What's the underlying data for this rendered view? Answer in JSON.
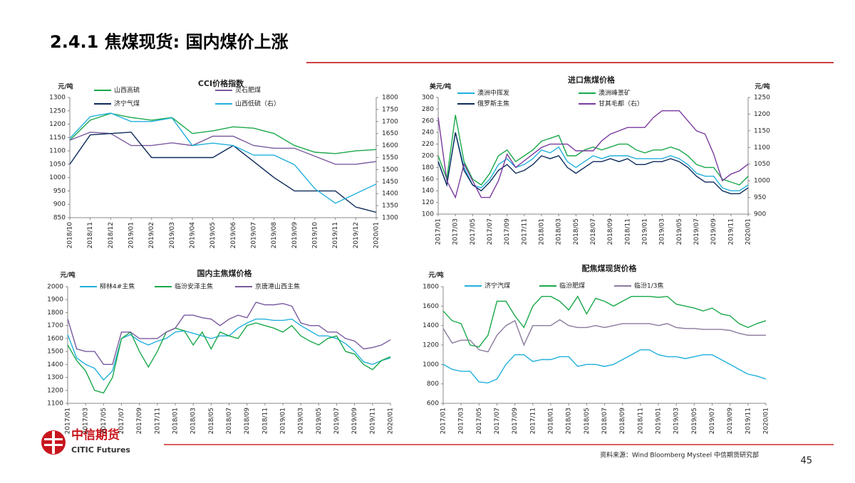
{
  "title": "2.4.1 焦煤现货: 国内煤价上涨",
  "logo": {
    "name": "中信期货",
    "english": "CITIC Futures"
  },
  "source": "资料来源：Wind Bloomberg Mysteel 中信期货研究部",
  "page_number": "45",
  "chart_data": [
    {
      "type": "line",
      "title": "CCI价格指数",
      "y_label": "元/吨",
      "categories": [
        "2018/10",
        "2018/11",
        "2018/12",
        "2019/01",
        "2019/02",
        "2019/03",
        "2019/04",
        "2019/05",
        "2019/06",
        "2019/07",
        "2019/08",
        "2019/09",
        "2019/10",
        "2019/11",
        "2019/12",
        "2020/01"
      ],
      "ylim": [
        850,
        1300
      ],
      "yticks": [
        850,
        900,
        950,
        1000,
        1050,
        1100,
        1150,
        1200,
        1250,
        1300
      ],
      "y2lim": [
        1300,
        1800
      ],
      "y2ticks": [
        1300,
        1350,
        1400,
        1450,
        1500,
        1550,
        1600,
        1650,
        1700,
        1750,
        1800
      ],
      "series": [
        {
          "name": "山西高硫",
          "color": "#1aa84a",
          "values": [
            1140,
            1215,
            1240,
            1225,
            1215,
            1225,
            1165,
            1175,
            1190,
            1185,
            1165,
            1120,
            1095,
            1090,
            1100,
            1105
          ]
        },
        {
          "name": "灵石肥煤",
          "color": "#7a5a9e",
          "values": [
            1140,
            1170,
            1165,
            1120,
            1120,
            1130,
            1120,
            1155,
            1155,
            1120,
            1110,
            1110,
            1080,
            1050,
            1050,
            1060
          ]
        },
        {
          "name": "济宁气煤",
          "color": "#0d2a5a",
          "values": [
            1050,
            1160,
            1165,
            1170,
            1075,
            1075,
            1075,
            1075,
            1120,
            1060,
            1000,
            950,
            950,
            950,
            890,
            870
          ]
        },
        {
          "name": "山西低硫（右）",
          "color": "#21b0dc",
          "axis": "y2",
          "values": [
            1630,
            1720,
            1735,
            1700,
            1700,
            1715,
            1600,
            1610,
            1600,
            1560,
            1560,
            1520,
            1420,
            1360,
            1400,
            1440
          ]
        }
      ]
    },
    {
      "type": "line",
      "title": "进口焦煤价格",
      "y_label": "美元/吨",
      "y2_label": "元/吨",
      "categories": [
        "2017/01",
        null,
        "2017/03",
        null,
        "2017/05",
        null,
        "2017/07",
        null,
        "2017/09",
        null,
        "2017/11",
        null,
        "2018/01",
        null,
        "2018/03",
        null,
        "2018/05",
        null,
        "2018/07",
        null,
        "2018/09",
        null,
        "2018/11",
        null,
        "2019/01",
        null,
        "2019/03",
        null,
        "2019/05",
        null,
        "2019/07",
        null,
        "2019/09",
        null,
        "2019/11",
        null,
        "2020/01"
      ],
      "ylim": [
        100,
        300
      ],
      "yticks": [
        100,
        120,
        140,
        160,
        180,
        200,
        220,
        240,
        260,
        280,
        300
      ],
      "y2lim": [
        900,
        1250
      ],
      "y2ticks": [
        900,
        950,
        1000,
        1050,
        1100,
        1150,
        1200,
        1250
      ],
      "series": [
        {
          "name": "澳洲中挥发",
          "color": "#21b0dc",
          "values": [
            190,
            150,
            240,
            180,
            150,
            145,
            160,
            185,
            195,
            180,
            185,
            195,
            210,
            205,
            215,
            190,
            180,
            190,
            200,
            195,
            200,
            200,
            200,
            195,
            195,
            195,
            195,
            200,
            195,
            185,
            170,
            165,
            165,
            145,
            140,
            140,
            150
          ]
        },
        {
          "name": "澳洲峰景矿",
          "color": "#1aa84a",
          "values": [
            200,
            160,
            270,
            190,
            160,
            150,
            170,
            200,
            210,
            190,
            200,
            210,
            225,
            230,
            235,
            200,
            200,
            210,
            215,
            210,
            215,
            220,
            220,
            210,
            205,
            210,
            210,
            215,
            210,
            200,
            185,
            180,
            180,
            160,
            155,
            150,
            165
          ]
        },
        {
          "name": "俄罗斯主焦",
          "color": "#0d2a5a",
          "values": [
            190,
            150,
            240,
            175,
            150,
            140,
            155,
            175,
            185,
            170,
            175,
            185,
            200,
            195,
            200,
            180,
            170,
            180,
            190,
            190,
            195,
            190,
            195,
            185,
            185,
            190,
            190,
            195,
            190,
            180,
            165,
            155,
            155,
            140,
            135,
            135,
            145
          ]
        },
        {
          "name": "甘其毛都（右）",
          "color": "#7a3a9e",
          "axis": "y2",
          "values": [
            1190,
            1000,
            950,
            1050,
            1000,
            950,
            950,
            1000,
            1080,
            1040,
            1060,
            1080,
            1100,
            1110,
            1110,
            1110,
            1090,
            1090,
            1090,
            1120,
            1140,
            1150,
            1160,
            1160,
            1160,
            1190,
            1210,
            1210,
            1210,
            1180,
            1150,
            1140,
            1080,
            1000,
            1020,
            1030,
            1050
          ]
        }
      ]
    },
    {
      "type": "line",
      "title": "国内主焦煤价格",
      "y_label": "元/吨",
      "categories": [
        "2017/01",
        null,
        "2017/03",
        null,
        "2017/05",
        null,
        "2017/07",
        null,
        "2017/09",
        null,
        "2017/11",
        null,
        "2018/01",
        null,
        "2018/03",
        null,
        "2018/05",
        null,
        "2018/07",
        null,
        "2018/09",
        null,
        "2018/11",
        null,
        "2019/01",
        null,
        "2019/03",
        null,
        "2019/05",
        null,
        "2019/07",
        null,
        "2019/09",
        null,
        "2019/11",
        null,
        "2020/01"
      ],
      "ylim": [
        1100,
        2000
      ],
      "yticks": [
        1100,
        1200,
        1300,
        1400,
        1500,
        1600,
        1700,
        1800,
        1900,
        2000
      ],
      "series": [
        {
          "name": "柳林4#主焦",
          "color": "#21b0dc",
          "values": [
            1630,
            1450,
            1400,
            1370,
            1280,
            1350,
            1600,
            1630,
            1580,
            1550,
            1580,
            1600,
            1650,
            1660,
            1640,
            1620,
            1600,
            1620,
            1620,
            1680,
            1720,
            1750,
            1750,
            1740,
            1740,
            1750,
            1700,
            1660,
            1620,
            1620,
            1600,
            1560,
            1500,
            1420,
            1400,
            1430,
            1450
          ]
        },
        {
          "name": "临汾安泽主焦",
          "color": "#1aa84a",
          "values": [
            1550,
            1430,
            1350,
            1200,
            1180,
            1300,
            1600,
            1650,
            1500,
            1380,
            1500,
            1650,
            1680,
            1660,
            1550,
            1650,
            1520,
            1650,
            1620,
            1600,
            1700,
            1720,
            1700,
            1680,
            1650,
            1700,
            1620,
            1580,
            1550,
            1600,
            1620,
            1500,
            1480,
            1400,
            1360,
            1430,
            1460
          ]
        },
        {
          "name": "京唐港山西主焦",
          "color": "#7a5a9e",
          "values": [
            1750,
            1520,
            1500,
            1500,
            1400,
            1400,
            1650,
            1650,
            1600,
            1600,
            1600,
            1650,
            1680,
            1780,
            1780,
            1760,
            1750,
            1700,
            1750,
            1780,
            1760,
            1880,
            1860,
            1860,
            1870,
            1850,
            1720,
            1700,
            1700,
            1650,
            1650,
            1600,
            1580,
            1520,
            1530,
            1550,
            1590
          ]
        }
      ]
    },
    {
      "type": "line",
      "title": "配焦煤现货价格",
      "y_label": "元/吨",
      "categories": [
        "2017/01",
        null,
        "2017/03",
        null,
        "2017/05",
        null,
        "2017/07",
        null,
        "2017/09",
        null,
        "2017/11",
        null,
        "2018/01",
        null,
        "2018/03",
        null,
        "2018/05",
        null,
        "2018/07",
        null,
        "2018/09",
        null,
        "2018/11",
        null,
        "2019/01",
        null,
        "2019/03",
        null,
        "2019/05",
        null,
        "2019/07",
        null,
        "2019/09",
        null,
        "2019/11",
        null,
        "2020/01"
      ],
      "ylim": [
        600,
        1800
      ],
      "yticks": [
        600,
        800,
        1000,
        1200,
        1400,
        1600,
        1800
      ],
      "series": [
        {
          "name": "济宁汽煤",
          "color": "#21b0dc",
          "values": [
            1000,
            950,
            930,
            930,
            820,
            810,
            850,
            1000,
            1100,
            1100,
            1030,
            1050,
            1050,
            1080,
            1080,
            980,
            1000,
            1000,
            980,
            1000,
            1050,
            1100,
            1150,
            1150,
            1100,
            1080,
            1080,
            1060,
            1080,
            1100,
            1100,
            1050,
            1000,
            950,
            900,
            880,
            850
          ]
        },
        {
          "name": "临汾肥煤",
          "color": "#1aa84a",
          "values": [
            1550,
            1450,
            1420,
            1200,
            1180,
            1300,
            1650,
            1650,
            1500,
            1380,
            1600,
            1700,
            1700,
            1650,
            1560,
            1700,
            1520,
            1680,
            1650,
            1600,
            1650,
            1700,
            1700,
            1700,
            1690,
            1700,
            1620,
            1600,
            1580,
            1550,
            1580,
            1520,
            1500,
            1420,
            1380,
            1420,
            1450
          ]
        },
        {
          "name": "临汾1/3焦",
          "color": "#8a7a9e",
          "values": [
            1370,
            1220,
            1250,
            1250,
            1150,
            1130,
            1300,
            1400,
            1450,
            1200,
            1400,
            1400,
            1400,
            1460,
            1400,
            1380,
            1380,
            1400,
            1380,
            1400,
            1420,
            1420,
            1420,
            1420,
            1400,
            1420,
            1380,
            1370,
            1370,
            1360,
            1360,
            1360,
            1350,
            1320,
            1300,
            1300,
            1300
          ]
        }
      ]
    }
  ]
}
